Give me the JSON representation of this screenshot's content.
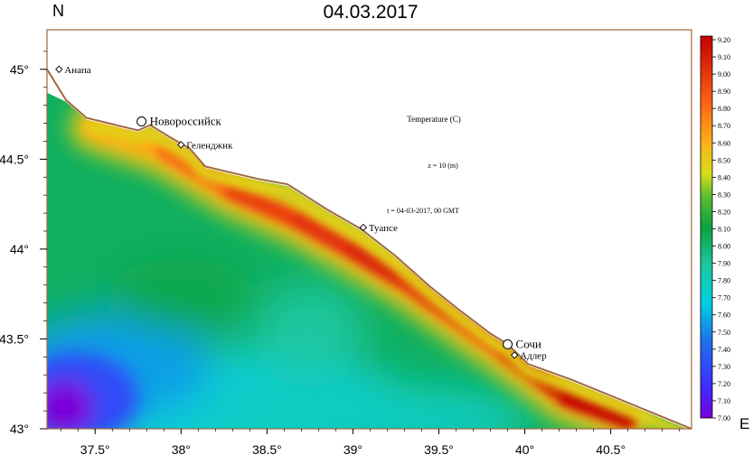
{
  "title": "04.03.2017",
  "north_label": "N",
  "east_label": "E",
  "annotations": {
    "variable": "Temperature (C)",
    "depth": "z = 10 (m)",
    "time": "t = 04-03-2017, 00 GMT"
  },
  "axes": {
    "lon_ticks": [
      {
        "value": 37.5,
        "label": "37.5°"
      },
      {
        "value": 38.0,
        "label": "38°"
      },
      {
        "value": 38.5,
        "label": "38.5°"
      },
      {
        "value": 39.0,
        "label": "39°"
      },
      {
        "value": 39.5,
        "label": "39.5°"
      },
      {
        "value": 40.0,
        "label": "40°"
      },
      {
        "value": 40.5,
        "label": "40.5°"
      }
    ],
    "lat_ticks": [
      {
        "value": 43.0,
        "label": "43°"
      },
      {
        "value": 43.5,
        "label": "43.5°"
      },
      {
        "value": 44.0,
        "label": "44°"
      },
      {
        "value": 44.5,
        "label": "44.5°"
      },
      {
        "value": 45.0,
        "label": "45°"
      }
    ],
    "lon_range": [
      37.22,
      40.97
    ],
    "lat_range": [
      43.0,
      45.22
    ]
  },
  "cities": [
    {
      "name": "Анапа",
      "lon": 37.29,
      "lat": 45.0
    },
    {
      "name": "Новороссийск",
      "lon": 37.77,
      "lat": 44.71
    },
    {
      "name": "Геленджик",
      "lon": 38.0,
      "lat": 44.58
    },
    {
      "name": "Туапсе",
      "lon": 39.06,
      "lat": 44.12
    },
    {
      "name": "Сочи",
      "lon": 39.9,
      "lat": 43.47
    },
    {
      "name": "Адлер",
      "lon": 39.94,
      "lat": 43.41
    }
  ],
  "colorbar": {
    "min": 7.0,
    "max": 9.2,
    "labels": [
      "9.20",
      "9.10",
      "9.00",
      "8.90",
      "8.80",
      "8.70",
      "8.60",
      "8.50",
      "8.40",
      "8.30",
      "8.20",
      "8.10",
      "8.00",
      "7.90",
      "7.80",
      "7.70",
      "7.60",
      "7.50",
      "7.40",
      "7.30",
      "7.20",
      "7.10",
      "7.00"
    ]
  },
  "colors": {
    "coast": "#a0683c",
    "land": "#ffffff",
    "frame": "#000000"
  },
  "chart_data": {
    "type": "heatmap",
    "variable": "Temperature (C)",
    "units": "C",
    "value_range": [
      7.0,
      9.2
    ],
    "coast_line": [
      [
        37.22,
        45.0
      ],
      [
        37.33,
        44.83
      ],
      [
        37.45,
        44.73
      ],
      [
        37.75,
        44.66
      ],
      [
        37.82,
        44.69
      ],
      [
        37.94,
        44.62
      ],
      [
        38.05,
        44.56
      ],
      [
        38.14,
        44.46
      ],
      [
        38.45,
        44.39
      ],
      [
        38.62,
        44.36
      ],
      [
        38.85,
        44.22
      ],
      [
        39.05,
        44.11
      ],
      [
        39.25,
        43.96
      ],
      [
        39.45,
        43.79
      ],
      [
        39.62,
        43.66
      ],
      [
        39.8,
        43.53
      ],
      [
        39.9,
        43.47
      ],
      [
        40.02,
        43.36
      ],
      [
        40.28,
        43.27
      ],
      [
        40.97,
        43.0
      ]
    ],
    "warm_band_core": [
      [
        37.5,
        44.68,
        8.5
      ],
      [
        37.9,
        44.55,
        8.7
      ],
      [
        38.3,
        44.32,
        8.9
      ],
      [
        38.7,
        44.15,
        9.0
      ],
      [
        39.0,
        43.99,
        9.0
      ],
      [
        39.3,
        43.82,
        9.1
      ],
      [
        39.6,
        43.62,
        8.9
      ],
      [
        39.9,
        43.42,
        9.0
      ],
      [
        40.25,
        43.17,
        9.2
      ],
      [
        40.6,
        43.05,
        9.2
      ]
    ],
    "cold_core": [
      37.32,
      43.12,
      7.0
    ]
  }
}
